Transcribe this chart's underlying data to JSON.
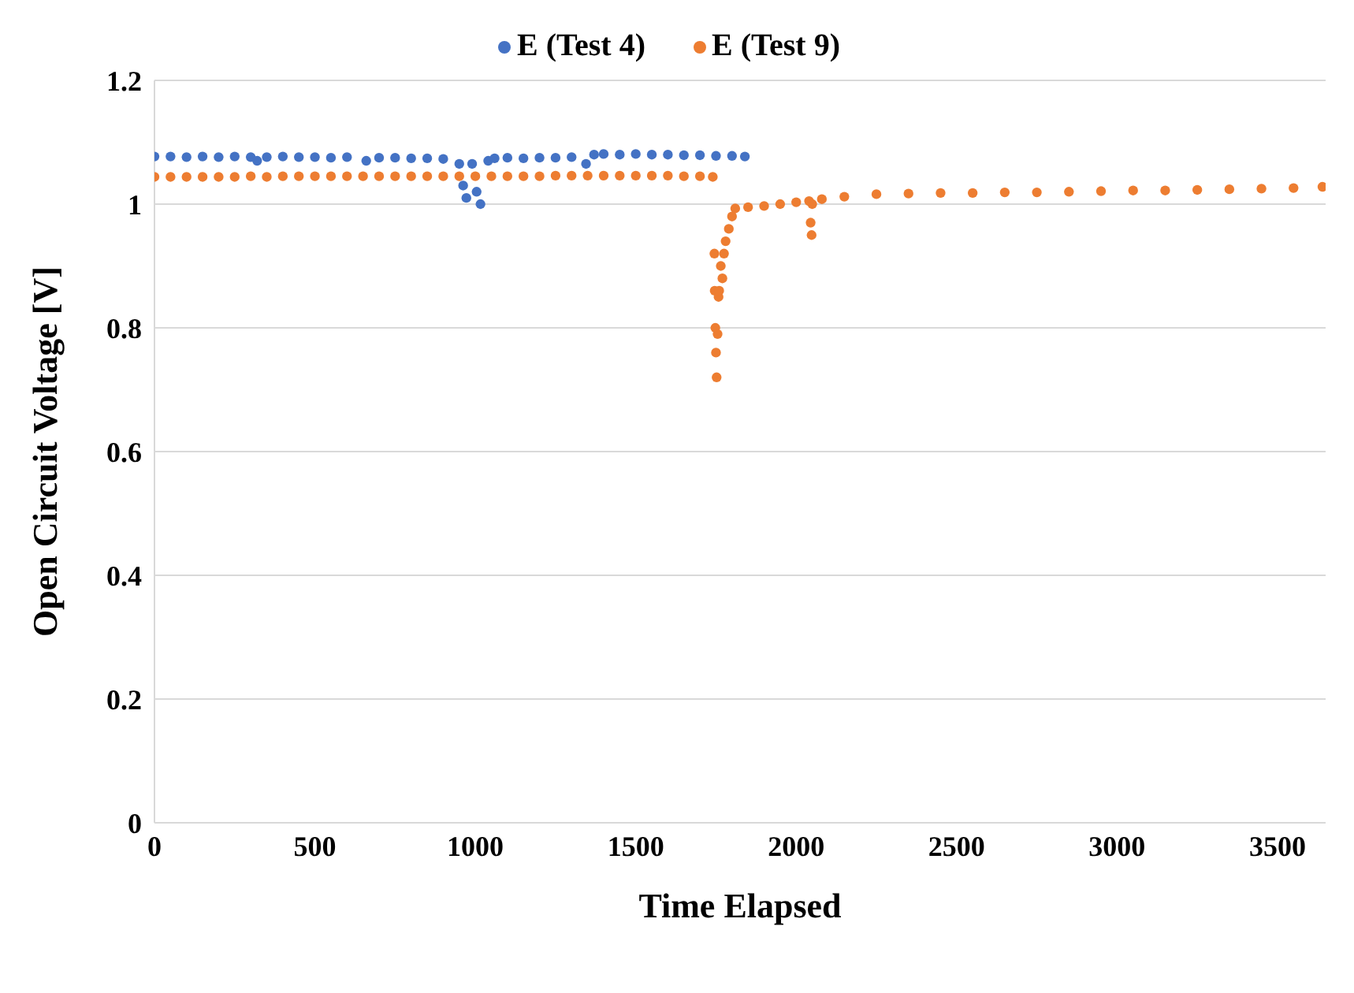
{
  "chart_data": {
    "type": "scatter",
    "xlabel": "Time Elapsed",
    "ylabel": "Open Circuit Voltage [V]",
    "xlim": [
      0,
      3650
    ],
    "xticks": [
      0,
      500,
      1000,
      1500,
      2000,
      2500,
      3000,
      3500
    ],
    "ylim": [
      0,
      1.2
    ],
    "yticks": [
      0,
      0.2,
      0.4,
      0.6,
      0.8,
      1,
      1.2
    ],
    "grid": "y",
    "legend": "top",
    "marker": "circle",
    "series": [
      {
        "name": "E (Test 4)",
        "color": "#4472c4",
        "x": [
          0,
          50,
          100,
          150,
          200,
          250,
          300,
          320,
          350,
          400,
          450,
          500,
          550,
          600,
          660,
          700,
          750,
          800,
          850,
          900,
          950,
          962,
          972,
          990,
          1004,
          1016,
          1040,
          1060,
          1100,
          1150,
          1200,
          1250,
          1300,
          1345,
          1370,
          1400,
          1450,
          1500,
          1550,
          1600,
          1650,
          1700,
          1750,
          1800,
          1840
        ],
        "values": [
          1.077,
          1.077,
          1.076,
          1.077,
          1.076,
          1.077,
          1.076,
          1.07,
          1.076,
          1.077,
          1.076,
          1.076,
          1.075,
          1.076,
          1.07,
          1.075,
          1.075,
          1.074,
          1.074,
          1.073,
          1.065,
          1.03,
          1.01,
          1.065,
          1.02,
          1.0,
          1.07,
          1.074,
          1.075,
          1.074,
          1.075,
          1.075,
          1.076,
          1.065,
          1.08,
          1.081,
          1.08,
          1.081,
          1.08,
          1.08,
          1.079,
          1.079,
          1.078,
          1.078,
          1.077
        ]
      },
      {
        "name": "E (Test 9)",
        "color": "#ed7d31",
        "x": [
          0,
          50,
          100,
          150,
          200,
          250,
          300,
          350,
          400,
          450,
          500,
          550,
          600,
          650,
          700,
          750,
          800,
          850,
          900,
          950,
          1000,
          1050,
          1100,
          1150,
          1200,
          1250,
          1300,
          1350,
          1400,
          1450,
          1500,
          1550,
          1600,
          1650,
          1700,
          1740,
          1745,
          1746,
          1748,
          1750,
          1752,
          1755,
          1758,
          1760,
          1765,
          1770,
          1775,
          1780,
          1790,
          1800,
          1810,
          1850,
          1900,
          1950,
          2000,
          2040,
          2045,
          2048,
          2050,
          2080,
          2150,
          2250,
          2350,
          2450,
          2550,
          2650,
          2750,
          2850,
          2950,
          3050,
          3150,
          3250,
          3350,
          3450,
          3550,
          3640
        ],
        "values": [
          1.044,
          1.044,
          1.044,
          1.044,
          1.044,
          1.044,
          1.045,
          1.044,
          1.045,
          1.045,
          1.045,
          1.045,
          1.045,
          1.045,
          1.045,
          1.045,
          1.045,
          1.045,
          1.045,
          1.045,
          1.045,
          1.045,
          1.045,
          1.045,
          1.045,
          1.046,
          1.046,
          1.046,
          1.046,
          1.046,
          1.046,
          1.046,
          1.046,
          1.045,
          1.045,
          1.044,
          0.92,
          0.86,
          0.8,
          0.76,
          0.72,
          0.79,
          0.85,
          0.86,
          0.9,
          0.88,
          0.92,
          0.94,
          0.96,
          0.98,
          0.993,
          0.995,
          0.997,
          1.0,
          1.003,
          1.005,
          0.97,
          0.95,
          1.0,
          1.008,
          1.012,
          1.016,
          1.017,
          1.018,
          1.018,
          1.019,
          1.019,
          1.02,
          1.021,
          1.022,
          1.022,
          1.023,
          1.024,
          1.025,
          1.026,
          1.028
        ]
      }
    ]
  }
}
